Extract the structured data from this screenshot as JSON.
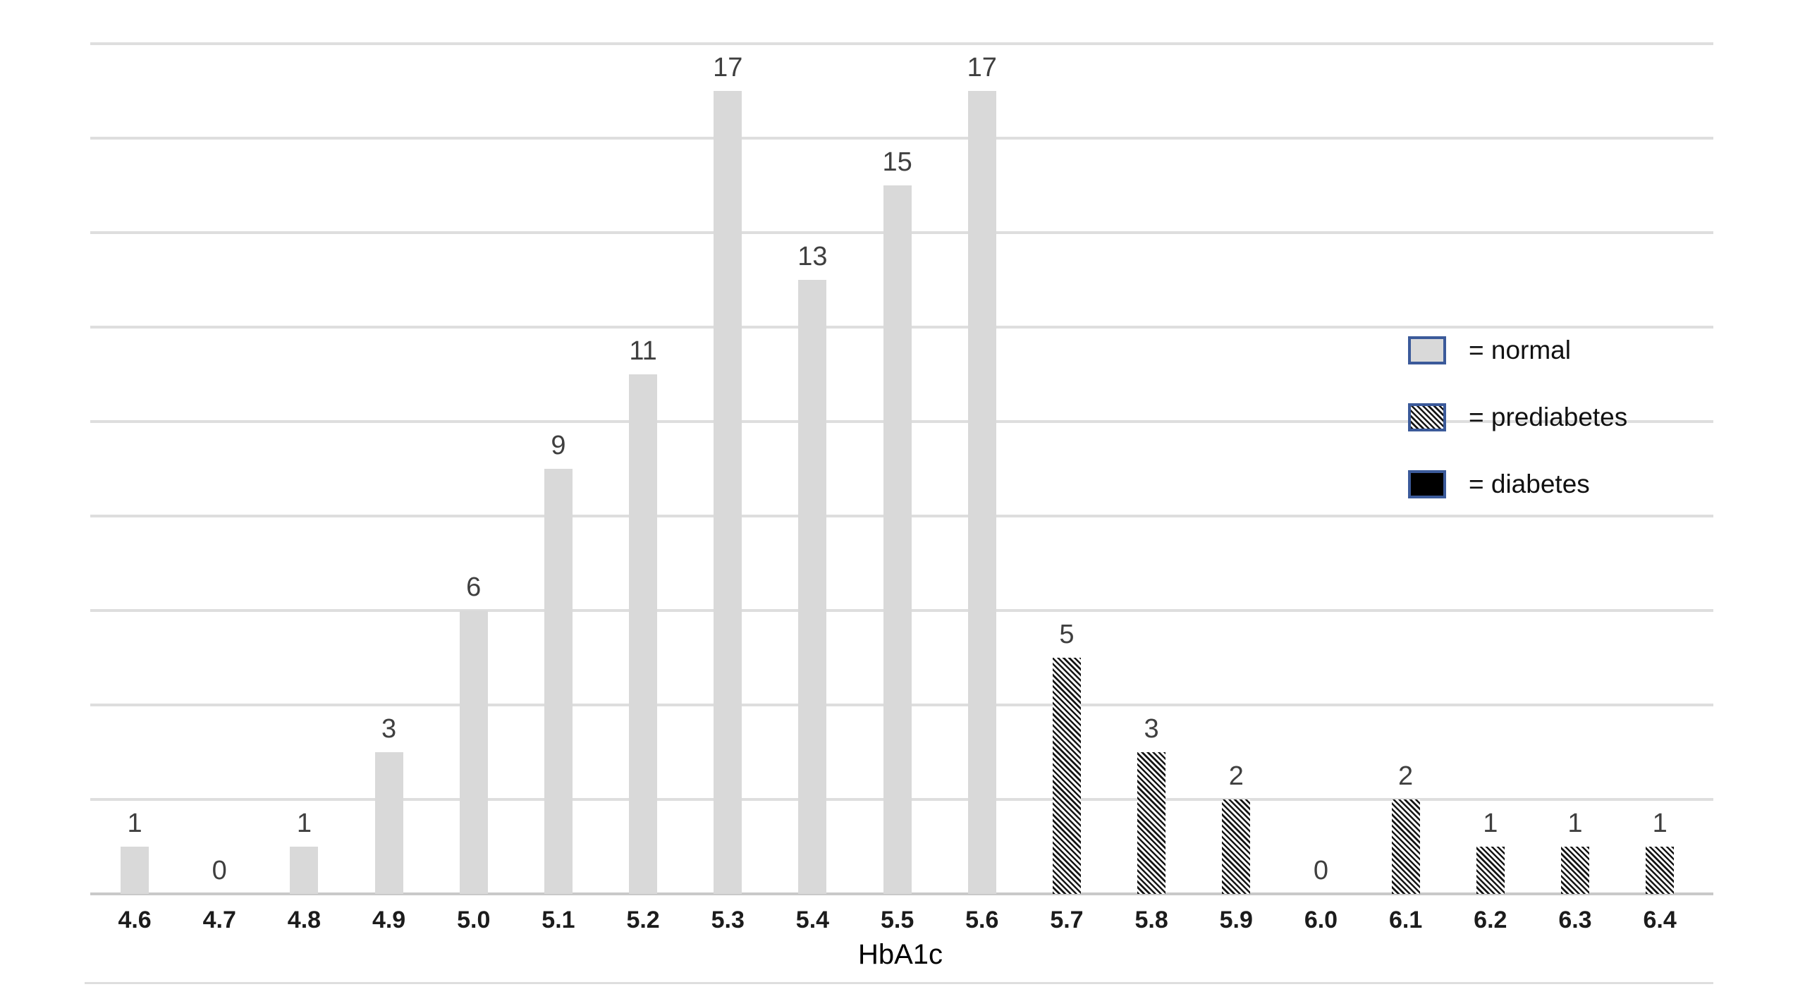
{
  "chart_data": {
    "type": "bar",
    "title": "",
    "xlabel": "HbA1c",
    "ylabel": "",
    "ylim": [
      0,
      18
    ],
    "gridline_step": 2,
    "grid": true,
    "y_axis_labels_visible": false,
    "legend_position": "inside-right",
    "categories": [
      "4.6",
      "4.7",
      "4.8",
      "4.9",
      "5.0",
      "5.1",
      "5.2",
      "5.3",
      "5.4",
      "5.5",
      "5.6",
      "5.7",
      "5.8",
      "5.9",
      "6.0",
      "6.1",
      "6.2",
      "6.3",
      "6.4"
    ],
    "values": [
      1,
      0,
      1,
      3,
      6,
      9,
      11,
      17,
      13,
      15,
      17,
      5,
      3,
      2,
      0,
      2,
      1,
      1,
      1
    ],
    "bars": [
      {
        "x": "4.6",
        "value": 1,
        "group": "normal"
      },
      {
        "x": "4.7",
        "value": 0,
        "group": "normal"
      },
      {
        "x": "4.8",
        "value": 1,
        "group": "normal"
      },
      {
        "x": "4.9",
        "value": 3,
        "group": "normal"
      },
      {
        "x": "5.0",
        "value": 6,
        "group": "normal"
      },
      {
        "x": "5.1",
        "value": 9,
        "group": "normal"
      },
      {
        "x": "5.2",
        "value": 11,
        "group": "normal"
      },
      {
        "x": "5.3",
        "value": 17,
        "group": "normal"
      },
      {
        "x": "5.4",
        "value": 13,
        "group": "normal"
      },
      {
        "x": "5.5",
        "value": 15,
        "group": "normal"
      },
      {
        "x": "5.6",
        "value": 17,
        "group": "normal"
      },
      {
        "x": "5.7",
        "value": 5,
        "group": "prediabetes"
      },
      {
        "x": "5.8",
        "value": 3,
        "group": "prediabetes"
      },
      {
        "x": "5.9",
        "value": 2,
        "group": "prediabetes"
      },
      {
        "x": "6.0",
        "value": 0,
        "group": "prediabetes"
      },
      {
        "x": "6.1",
        "value": 2,
        "group": "prediabetes"
      },
      {
        "x": "6.2",
        "value": 1,
        "group": "prediabetes"
      },
      {
        "x": "6.3",
        "value": 1,
        "group": "prediabetes"
      },
      {
        "x": "6.4",
        "value": 1,
        "group": "prediabetes"
      }
    ],
    "series": [
      {
        "name": "normal",
        "categories": [
          "4.6",
          "4.7",
          "4.8",
          "4.9",
          "5.0",
          "5.1",
          "5.2",
          "5.3",
          "5.4",
          "5.5",
          "5.6"
        ],
        "values": [
          1,
          0,
          1,
          3,
          6,
          9,
          11,
          17,
          13,
          15,
          17
        ]
      },
      {
        "name": "prediabetes",
        "categories": [
          "5.7",
          "5.8",
          "5.9",
          "6.0",
          "6.1",
          "6.2",
          "6.3",
          "6.4"
        ],
        "values": [
          5,
          3,
          2,
          0,
          2,
          1,
          1,
          1
        ]
      },
      {
        "name": "diabetes",
        "categories": [],
        "values": []
      }
    ],
    "legend": {
      "items": [
        {
          "label": "= normal",
          "swatch": "normal"
        },
        {
          "label": "= prediabetes",
          "swatch": "prediabetes"
        },
        {
          "label": "= diabetes",
          "swatch": "diabetes"
        }
      ]
    },
    "colors": {
      "normal_fill": "#d9d9d9",
      "hatch_stroke": "#151515",
      "diabetes_fill": "#000000",
      "legend_swatch_border": "#3b5a9a",
      "data_label": "#3f3f3f",
      "tick_label": "#1c1c1c",
      "grid_color": "#dedede",
      "axis_color": "#c9c9c9"
    }
  }
}
